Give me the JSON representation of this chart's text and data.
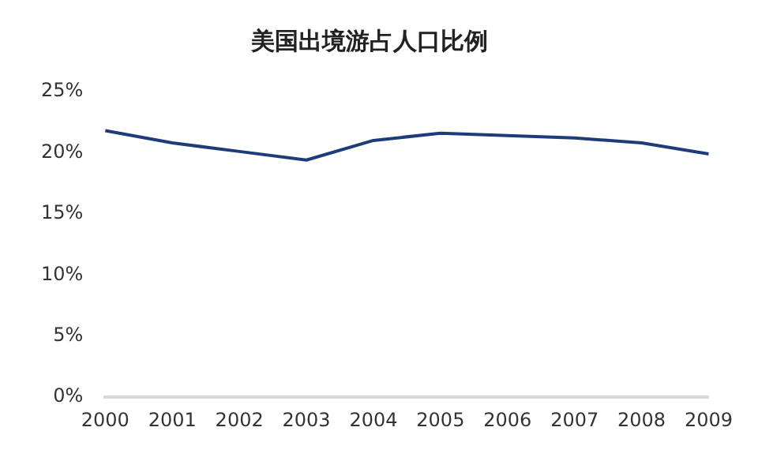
{
  "chart_data": {
    "type": "line",
    "title": "美国出境游占人口比例",
    "categories": [
      "2000",
      "2001",
      "2002",
      "2003",
      "2004",
      "2005",
      "2006",
      "2007",
      "2008",
      "2009"
    ],
    "series": [
      {
        "color": "#1f3c7a",
        "values": [
          21.8,
          20.8,
          20.1,
          19.4,
          21.0,
          21.6,
          21.4,
          21.2,
          20.8,
          19.9
        ]
      }
    ],
    "ylim": [
      0,
      25
    ],
    "yticks": [
      {
        "value": 0,
        "label": "0%"
      },
      {
        "value": 5,
        "label": "5%"
      },
      {
        "value": 10,
        "label": "10%"
      },
      {
        "value": 15,
        "label": "15%"
      },
      {
        "value": 20,
        "label": "20%"
      },
      {
        "value": 25,
        "label": "25%"
      }
    ],
    "grid": false,
    "legend": false,
    "marker": "none",
    "line_style": "solid"
  }
}
